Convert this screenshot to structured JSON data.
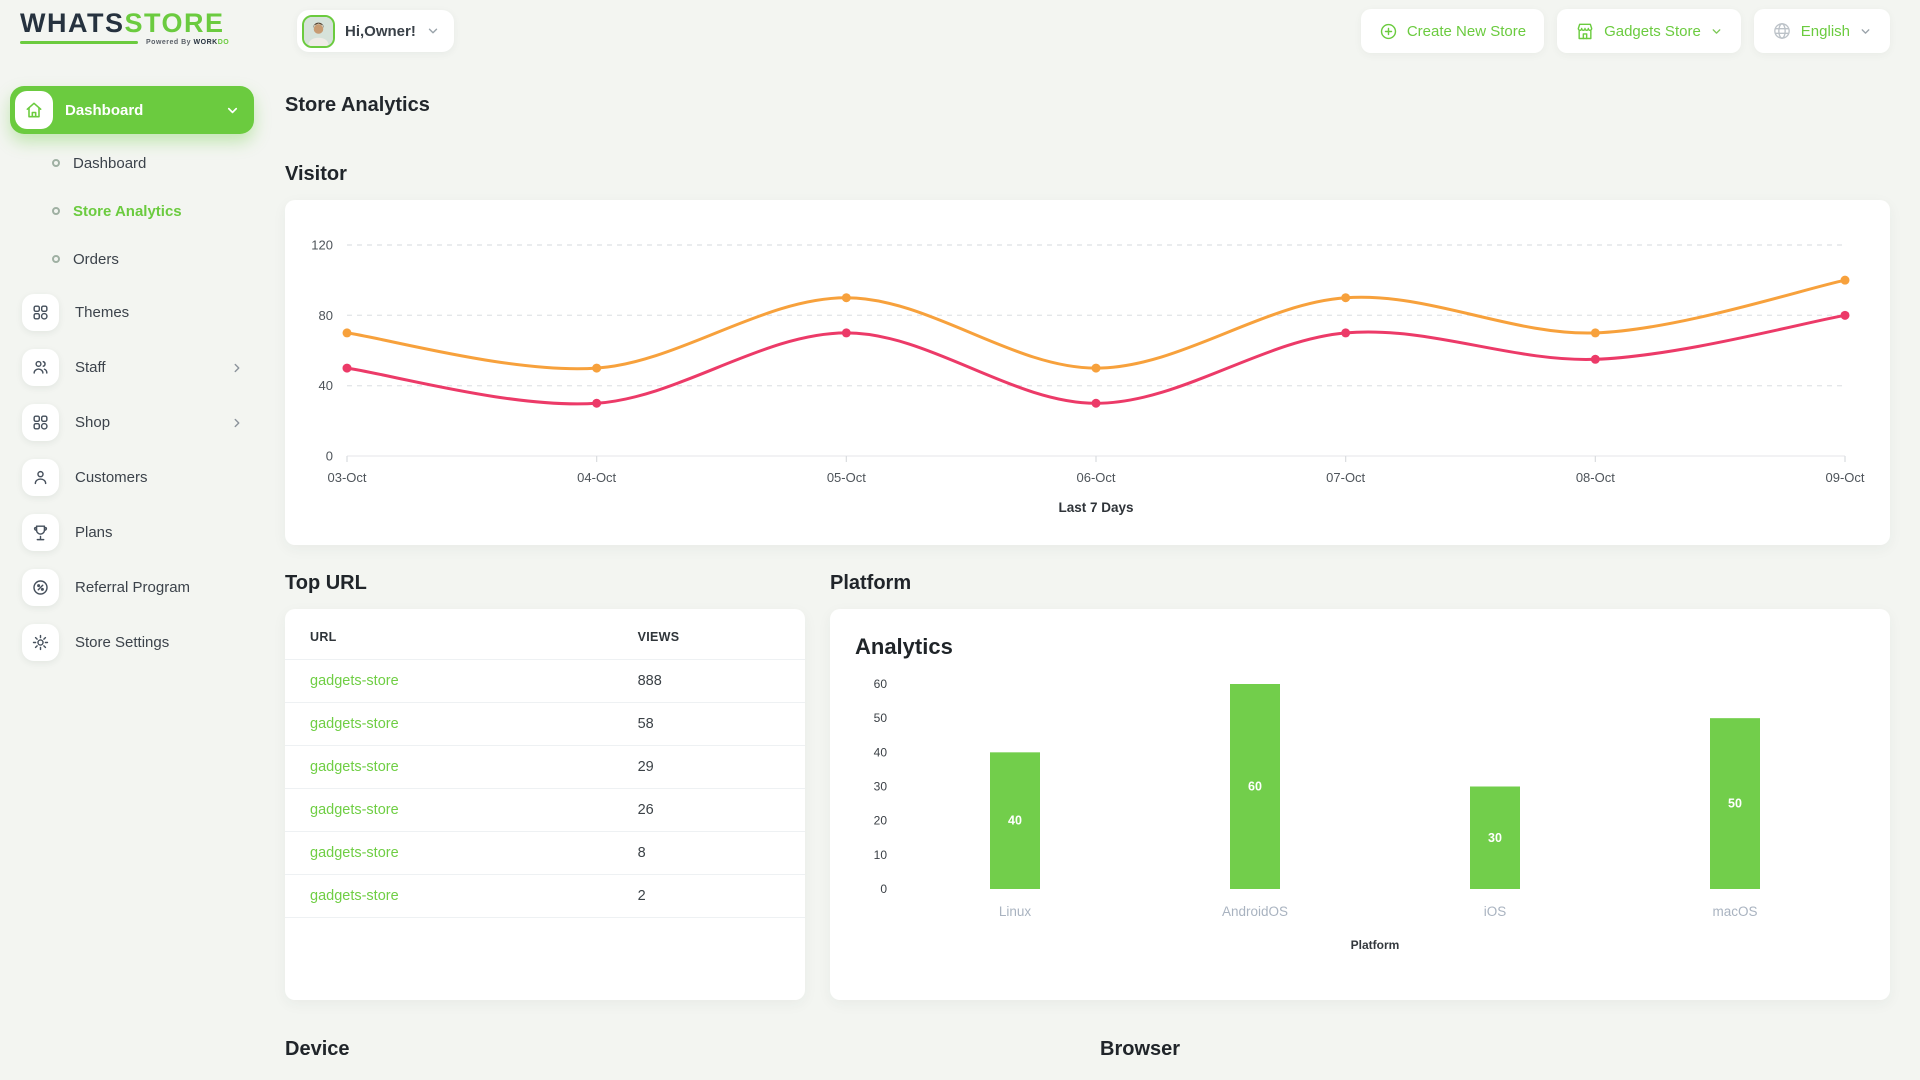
{
  "brand": {
    "primary": "WHATS",
    "secondary": "STORE",
    "powered_prefix": "Powered By",
    "powered_word1": "WORK",
    "powered_word2": "DO"
  },
  "header": {
    "greeting": "Hi,Owner!",
    "create_new_store": "Create New Store",
    "store_selector": "Gadgets Store",
    "language": "English"
  },
  "sidebar": {
    "group_label": "Dashboard",
    "sub_items": [
      {
        "label": "Dashboard",
        "active": false
      },
      {
        "label": "Store Analytics",
        "active": true
      },
      {
        "label": "Orders",
        "active": false
      }
    ],
    "items": [
      {
        "label": "Themes",
        "icon": "grid-icon"
      },
      {
        "label": "Staff",
        "icon": "users-icon",
        "has_chevron": true
      },
      {
        "label": "Shop",
        "icon": "grid-icon",
        "has_chevron": true
      },
      {
        "label": "Customers",
        "icon": "user-icon"
      },
      {
        "label": "Plans",
        "icon": "trophy-icon"
      },
      {
        "label": "Referral Program",
        "icon": "badge-percent-icon"
      },
      {
        "label": "Store Settings",
        "icon": "gear-icon"
      }
    ]
  },
  "page": {
    "title": "Store Analytics"
  },
  "sections": {
    "visitor": "Visitor",
    "top_url": "Top URL",
    "platform": "Platform",
    "device": "Device",
    "browser": "Browser"
  },
  "colors": {
    "accent_green": "#6bcb3f",
    "bar_green": "#72ce4b",
    "line_orange": "#f7a13c",
    "line_pink": "#ec3a68",
    "page_bg": "#f3f5f1"
  },
  "chart_data": [
    {
      "type": "line",
      "title": "Visitor",
      "x": [
        "03-Oct",
        "04-Oct",
        "05-Oct",
        "06-Oct",
        "07-Oct",
        "08-Oct",
        "09-Oct"
      ],
      "series": [
        {
          "name": "orange-series",
          "color": "#f7a13c",
          "values": [
            70,
            50,
            90,
            50,
            90,
            70,
            100
          ]
        },
        {
          "name": "pink-series",
          "color": "#ec3a68",
          "values": [
            50,
            30,
            70,
            30,
            70,
            55,
            80
          ]
        }
      ],
      "xlabel": "Last 7 Days",
      "ylim": [
        0,
        120
      ],
      "yticks": [
        0,
        40,
        80,
        120
      ],
      "grid": "horizontal-dashed",
      "legend": "none"
    },
    {
      "type": "bar",
      "title": "Analytics",
      "categories": [
        "Linux",
        "AndroidOS",
        "iOS",
        "macOS"
      ],
      "values": [
        40,
        60,
        30,
        50
      ],
      "bar_color": "#72ce4b",
      "value_label_color": "#ffffff",
      "xlabel": "Platform",
      "ylim": [
        0,
        60
      ],
      "yticks": [
        0,
        10,
        20,
        30,
        40,
        50,
        60
      ],
      "grid": "off",
      "legend": "none"
    }
  ],
  "top_url_table": {
    "headers": [
      "URL",
      "VIEWS"
    ],
    "rows": [
      {
        "url": "gadgets-store",
        "views": "888"
      },
      {
        "url": "gadgets-store",
        "views": "58"
      },
      {
        "url": "gadgets-store",
        "views": "29"
      },
      {
        "url": "gadgets-store",
        "views": "26"
      },
      {
        "url": "gadgets-store",
        "views": "8"
      },
      {
        "url": "gadgets-store",
        "views": "2"
      }
    ]
  }
}
